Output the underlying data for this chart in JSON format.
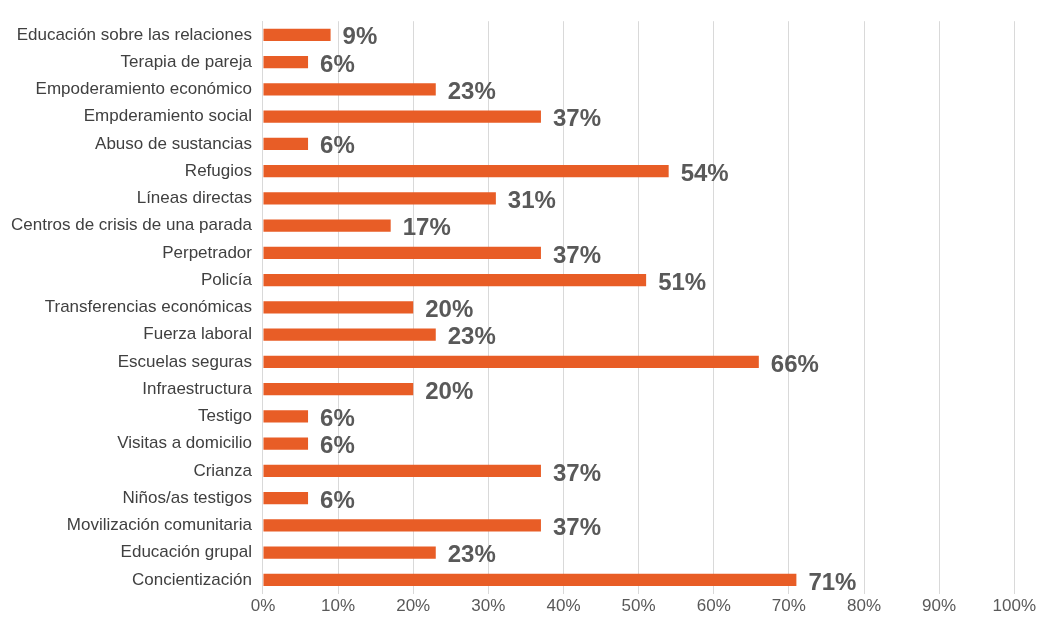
{
  "chart_data": {
    "type": "bar",
    "orientation": "horizontal",
    "categories": [
      "Educación sobre las relaciones",
      "Terapia de pareja",
      "Empoderamiento económico",
      "Empderamiento social",
      "Abuso de sustancias",
      "Refugios",
      "Líneas directas",
      "Centros de crisis de una parada",
      "Perpetrador",
      "Policía",
      "Transferencias económicas",
      "Fuerza laboral",
      "Escuelas seguras",
      "Infraestructura",
      "Testigo",
      "Visitas a domicilio",
      "Crianza",
      "Niños/as testigos",
      "Movilización comunitaria",
      "Educación grupal",
      "Concientización"
    ],
    "values": [
      9,
      6,
      23,
      37,
      6,
      54,
      31,
      17,
      37,
      51,
      20,
      23,
      66,
      20,
      6,
      6,
      37,
      6,
      37,
      23,
      71
    ],
    "value_labels": [
      "9%",
      "6%",
      "23%",
      "37%",
      "6%",
      "54%",
      "31%",
      "17%",
      "37%",
      "51%",
      "20%",
      "23%",
      "66%",
      "20%",
      "6%",
      "6%",
      "37%",
      "6%",
      "37%",
      "23%",
      "71%"
    ],
    "color": "#e85d26",
    "xlim": [
      0,
      100
    ],
    "xticks": [
      {
        "value": 0,
        "label": "0%"
      },
      {
        "value": 10,
        "label": "10%"
      },
      {
        "value": 20,
        "label": "20%"
      },
      {
        "value": 30,
        "label": "30%"
      },
      {
        "value": 40,
        "label": "40%"
      },
      {
        "value": 50,
        "label": "50%"
      },
      {
        "value": 60,
        "label": "60%"
      },
      {
        "value": 70,
        "label": "70%"
      },
      {
        "value": 80,
        "label": "80%"
      },
      {
        "value": 90,
        "label": "90%"
      },
      {
        "value": 100,
        "label": "100%"
      }
    ],
    "grid": "x",
    "legend": false
  }
}
